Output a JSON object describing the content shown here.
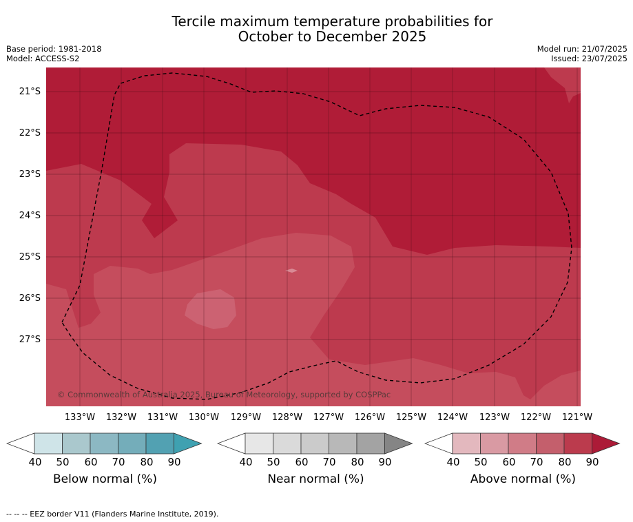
{
  "title": {
    "line1": "Tercile maximum temperature probabilities for",
    "line2": "October to December 2025"
  },
  "meta_left": {
    "base_period": "Base period: 1981-2018",
    "model": "Model: ACCESS-S2"
  },
  "meta_right": {
    "model_run": "Model run: 21/07/2025",
    "issued": "Issued: 23/07/2025"
  },
  "map": {
    "lat_labels": [
      "21°S",
      "22°S",
      "23°S",
      "24°S",
      "25°S",
      "26°S",
      "27°S"
    ],
    "lon_labels": [
      "133°W",
      "132°W",
      "131°W",
      "130°W",
      "129°W",
      "128°W",
      "127°W",
      "126°W",
      "125°W",
      "124°W",
      "123°W",
      "122°W",
      "121°W"
    ],
    "copyright": "© Commonwealth of Australia 2025, Bureau of Meteorology, supported by COSPPac",
    "colors": {
      "dark": "#b01c37",
      "mid": "#bd3a4e",
      "light": "#c54d5d",
      "lighter": "#cc6272",
      "lightest": "#d98a95"
    }
  },
  "colorbars": [
    {
      "title": "Below normal (%)",
      "ticks": [
        "40",
        "50",
        "60",
        "70",
        "80",
        "90"
      ],
      "colors": [
        "#cfe4e8",
        "#aac8cd",
        "#8cb8c3",
        "#74adba",
        "#52a1b2",
        "#3fa1b1"
      ]
    },
    {
      "title": "Near normal (%)",
      "ticks": [
        "40",
        "50",
        "60",
        "70",
        "80",
        "90"
      ],
      "colors": [
        "#e7e7e7",
        "#dadada",
        "#cbcbcb",
        "#b8b8b8",
        "#a3a3a3",
        "#858585"
      ]
    },
    {
      "title": "Above normal (%)",
      "ticks": [
        "40",
        "50",
        "60",
        "70",
        "80",
        "90"
      ],
      "colors": [
        "#e3b8be",
        "#d99aa3",
        "#d07c87",
        "#c45f6c",
        "#bb3b4d",
        "#ac1b37"
      ]
    }
  ],
  "footnote": "--  --  -- EEZ border V11 (Flanders Marine Institute, 2019)."
}
